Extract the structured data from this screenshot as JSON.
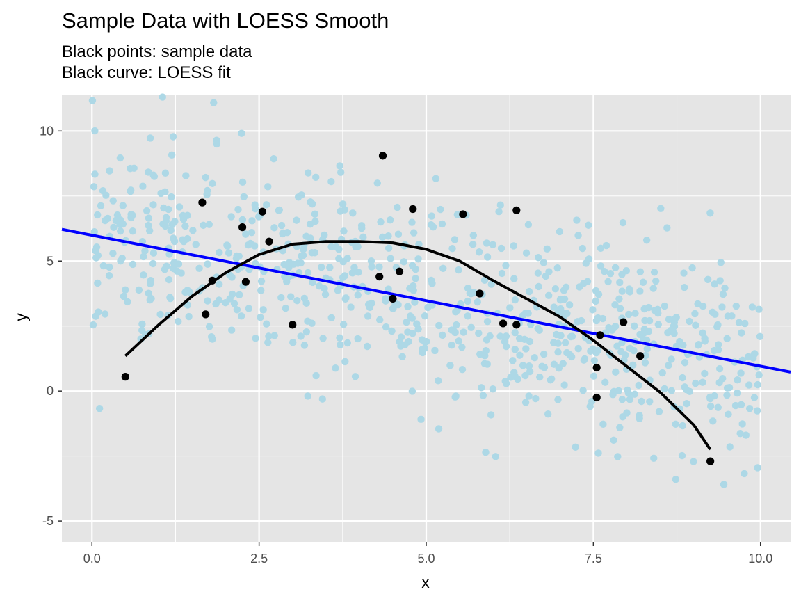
{
  "chart_data": {
    "type": "scatter",
    "title": "Sample Data with LOESS Smooth",
    "subtitle_lines": [
      "Black points: sample data",
      "Black curve: LOESS fit"
    ],
    "xlabel": "x",
    "ylabel": "y",
    "xlim": [
      -0.45,
      10.45
    ],
    "ylim": [
      -5.8,
      11.4
    ],
    "x_ticks": [
      0,
      2.5,
      5,
      7.5,
      10
    ],
    "x_tick_labels": [
      "0.0",
      "2.5",
      "5.0",
      "7.5",
      "10.0"
    ],
    "y_ticks": [
      -5,
      0,
      5,
      10
    ],
    "y_tick_labels": [
      "-5",
      "0",
      "5",
      "10"
    ],
    "grid": true,
    "colors": {
      "panel": "#e5e5e5",
      "grid": "#ffffff",
      "background_points": "#add8e6",
      "sample_points": "#000000",
      "loess_curve": "#000000",
      "linear_fit": "#0000ff"
    },
    "background_points": {
      "count": 800,
      "x_range": [
        0,
        10
      ],
      "trend": {
        "intercept": 6.0,
        "slope": -0.5
      },
      "spread_sd": 1.9
    },
    "series": [
      {
        "role": "sample data",
        "points": [
          [
            0.5,
            0.55
          ],
          [
            1.65,
            7.25
          ],
          [
            1.7,
            2.95
          ],
          [
            1.8,
            4.25
          ],
          [
            2.25,
            6.3
          ],
          [
            2.3,
            4.2
          ],
          [
            2.55,
            6.9
          ],
          [
            2.65,
            5.75
          ],
          [
            3.0,
            2.55
          ],
          [
            4.3,
            4.4
          ],
          [
            4.35,
            9.05
          ],
          [
            4.5,
            3.55
          ],
          [
            4.6,
            4.6
          ],
          [
            4.8,
            7.0
          ],
          [
            5.55,
            6.8
          ],
          [
            5.8,
            3.75
          ],
          [
            6.15,
            2.6
          ],
          [
            6.35,
            2.55
          ],
          [
            6.35,
            6.95
          ],
          [
            7.55,
            0.9
          ],
          [
            7.55,
            -0.25
          ],
          [
            7.6,
            2.15
          ],
          [
            7.95,
            2.65
          ],
          [
            8.2,
            1.35
          ],
          [
            9.25,
            -2.7
          ]
        ]
      },
      {
        "role": "LOESS fit",
        "points": [
          [
            0.5,
            1.35
          ],
          [
            1.0,
            2.55
          ],
          [
            1.5,
            3.65
          ],
          [
            2.0,
            4.55
          ],
          [
            2.5,
            5.25
          ],
          [
            3.0,
            5.65
          ],
          [
            3.5,
            5.75
          ],
          [
            4.0,
            5.75
          ],
          [
            4.5,
            5.7
          ],
          [
            5.0,
            5.45
          ],
          [
            5.5,
            5.0
          ],
          [
            6.0,
            4.25
          ],
          [
            6.5,
            3.55
          ],
          [
            7.0,
            2.85
          ],
          [
            7.5,
            1.95
          ],
          [
            8.0,
            0.95
          ],
          [
            8.5,
            -0.05
          ],
          [
            9.0,
            -1.3
          ],
          [
            9.25,
            -2.25
          ]
        ]
      },
      {
        "role": "linear fit",
        "points": [
          [
            -0.45,
            6.22
          ],
          [
            10.45,
            0.73
          ]
        ]
      }
    ]
  }
}
